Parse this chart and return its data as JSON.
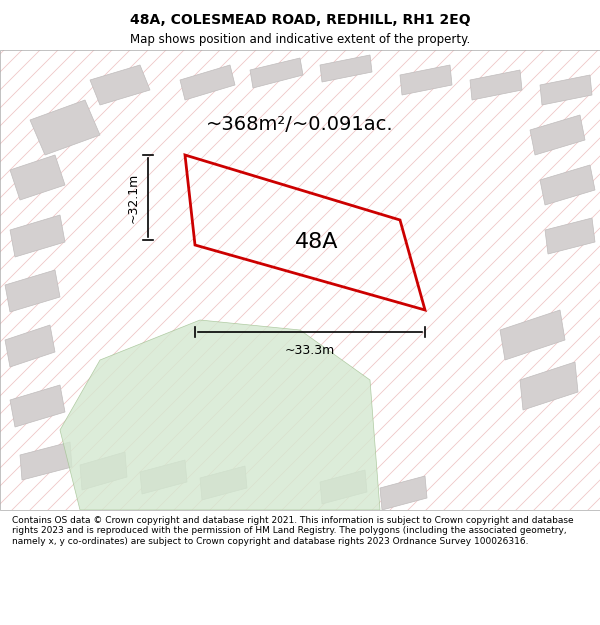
{
  "title_line1": "48A, COLESMEAD ROAD, REDHILL, RH1 2EQ",
  "title_line2": "Map shows position and indicative extent of the property.",
  "area_label": "~368m²/~0.091ac.",
  "plot_label": "48A",
  "dim_vertical": "~32.1m",
  "dim_horizontal": "~33.3m",
  "footer_text": "Contains OS data © Crown copyright and database right 2021. This information is subject to Crown copyright and database rights 2023 and is reproduced with the permission of HM Land Registry. The polygons (including the associated geometry, namely x, y co-ordinates) are subject to Crown copyright and database rights 2023 Ordnance Survey 100026316.",
  "bg_color": "#f0eeee",
  "map_bg": "#f5f2f2",
  "hatch_color": "#e8b0b0",
  "building_color": "#d4d0d0",
  "building_edge": "#c0bcbc",
  "green_color": "#d4e8d0",
  "plot_color": "#cc0000",
  "footer_bg": "#ffffff",
  "title_bg": "#ffffff"
}
